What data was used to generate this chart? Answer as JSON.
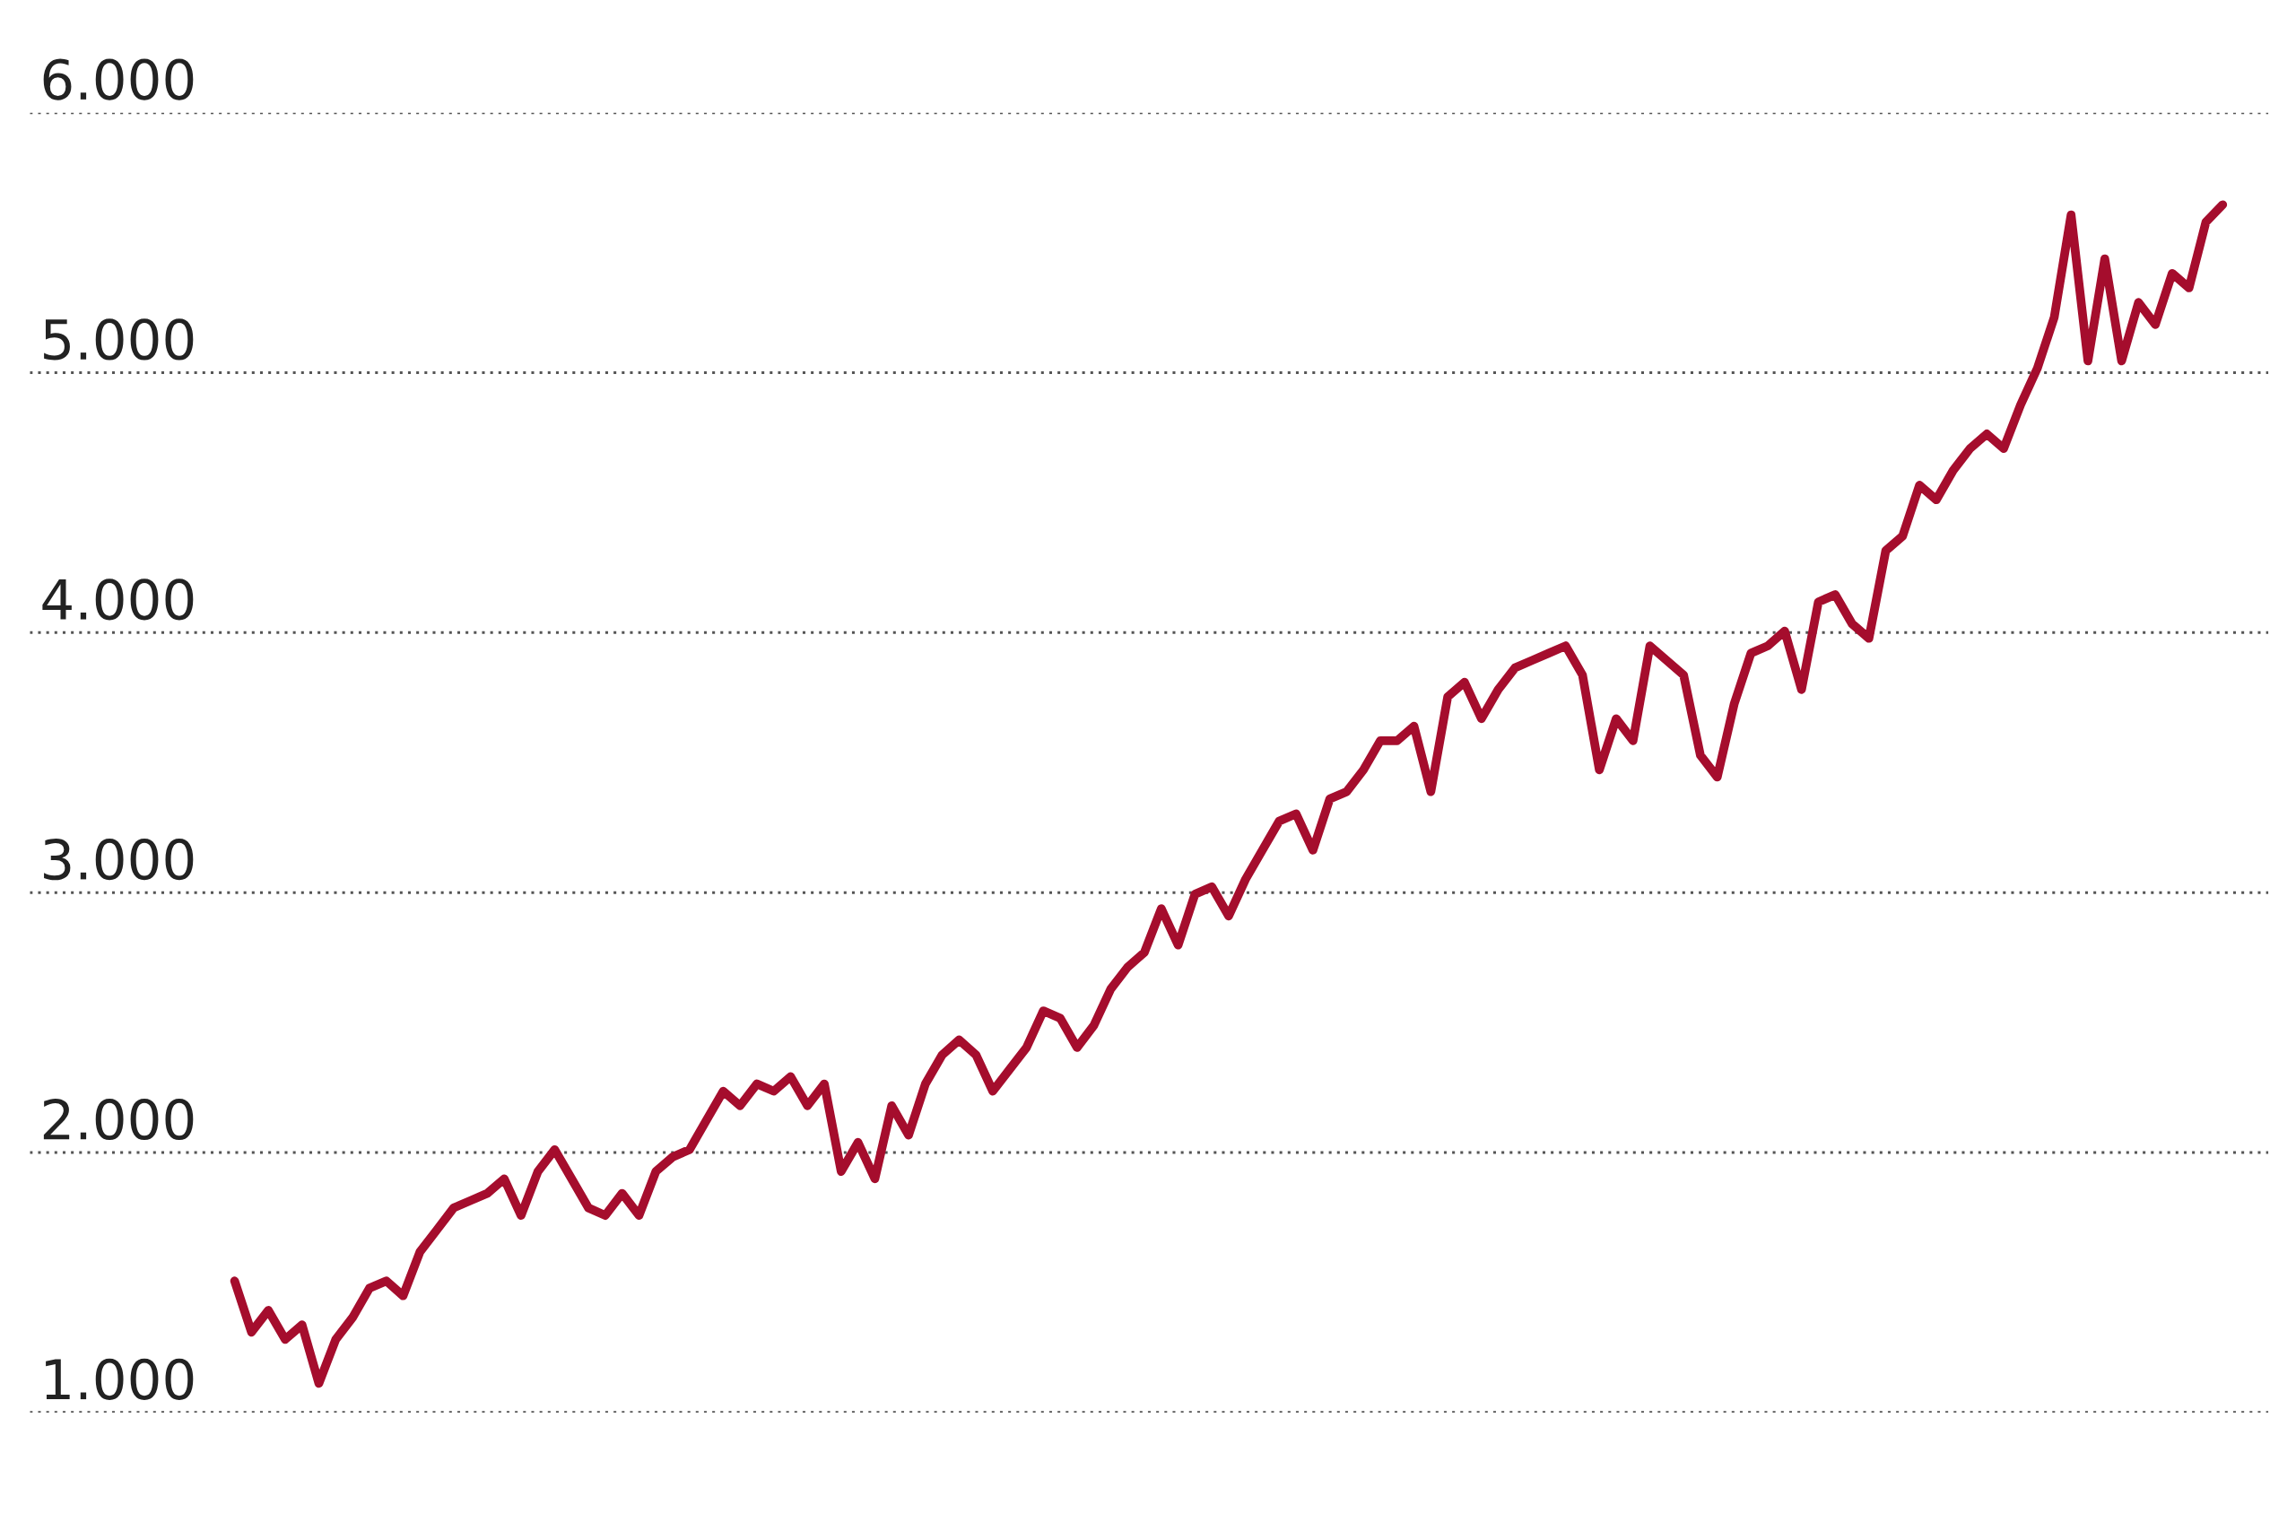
{
  "chart_data": {
    "type": "line",
    "categories": [
      null,
      null,
      null,
      null,
      null,
      null,
      null,
      null,
      null,
      null,
      null,
      null,
      null,
      null,
      null,
      null,
      null,
      null,
      null,
      null,
      null,
      null,
      null,
      null,
      null,
      null,
      null,
      null,
      null,
      null,
      null,
      null,
      null,
      null,
      null,
      null,
      null,
      null,
      null,
      null,
      null,
      null,
      null,
      null,
      null,
      null,
      null,
      null,
      null,
      null,
      null,
      null,
      null,
      null,
      null,
      null,
      null,
      null,
      null,
      null,
      null,
      null,
      null,
      null,
      null,
      null,
      null,
      null,
      null,
      null,
      null,
      null,
      null,
      null,
      null,
      null,
      null,
      null,
      null,
      null,
      null,
      null,
      null,
      null,
      null,
      null,
      null,
      null,
      null,
      null,
      null,
      null,
      null,
      null,
      null,
      null,
      null,
      null,
      null,
      null,
      null,
      null,
      null,
      null,
      null,
      null,
      null,
      null,
      null,
      null,
      null,
      null,
      null,
      null,
      null,
      null,
      null,
      null,
      null
    ],
    "series": [
      {
        "color": "#a50d2d",
        "values": [
          1506,
          1309,
          1393,
          1281,
          1337,
          1112,
          1281,
          1365,
          1478,
          1506,
          1449,
          1618,
          1702,
          1787,
          1815,
          1843,
          1899,
          1758,
          1927,
          2011,
          1899,
          1787,
          1758,
          1843,
          1758,
          1927,
          1983,
          2011,
          2124,
          2236,
          2180,
          2264,
          2236,
          2292,
          2180,
          2264,
          1927,
          2039,
          1899,
          2180,
          2067,
          2264,
          2376,
          2433,
          2376,
          2236,
          2320,
          2404,
          2545,
          2517,
          2404,
          2489,
          2629,
          2713,
          2770,
          2938,
          2798,
          2994,
          3022,
          2910,
          3051,
          3163,
          3275,
          3303,
          3163,
          3360,
          3388,
          3472,
          3584,
          3584,
          3640,
          3388,
          3753,
          3809,
          3669,
          3781,
          3865,
          3893,
          3921,
          3949,
          3837,
          3472,
          3669,
          3584,
          3949,
          3893,
          3837,
          3528,
          3444,
          3725,
          3921,
          3949,
          4006,
          3781,
          4118,
          4146,
          4034,
          3978,
          4315,
          4371,
          4567,
          4511,
          4624,
          4708,
          4764,
          4708,
          4876,
          5017,
          5213,
          5607,
          5045,
          5438,
          5045,
          5270,
          5185,
          5382,
          5326,
          5579,
          5646
        ]
      }
    ],
    "ylim": [
      1000,
      6000
    ],
    "yticks": [
      {
        "value": 1000,
        "label": "1.000"
      },
      {
        "value": 2000,
        "label": "2.000"
      },
      {
        "value": 3000,
        "label": "3.000"
      },
      {
        "value": 4000,
        "label": "4.000"
      },
      {
        "value": 5000,
        "label": "5.000"
      },
      {
        "value": 6000,
        "label": "6.000"
      }
    ],
    "grid": "y",
    "marker": "none",
    "line_style": "solid"
  }
}
